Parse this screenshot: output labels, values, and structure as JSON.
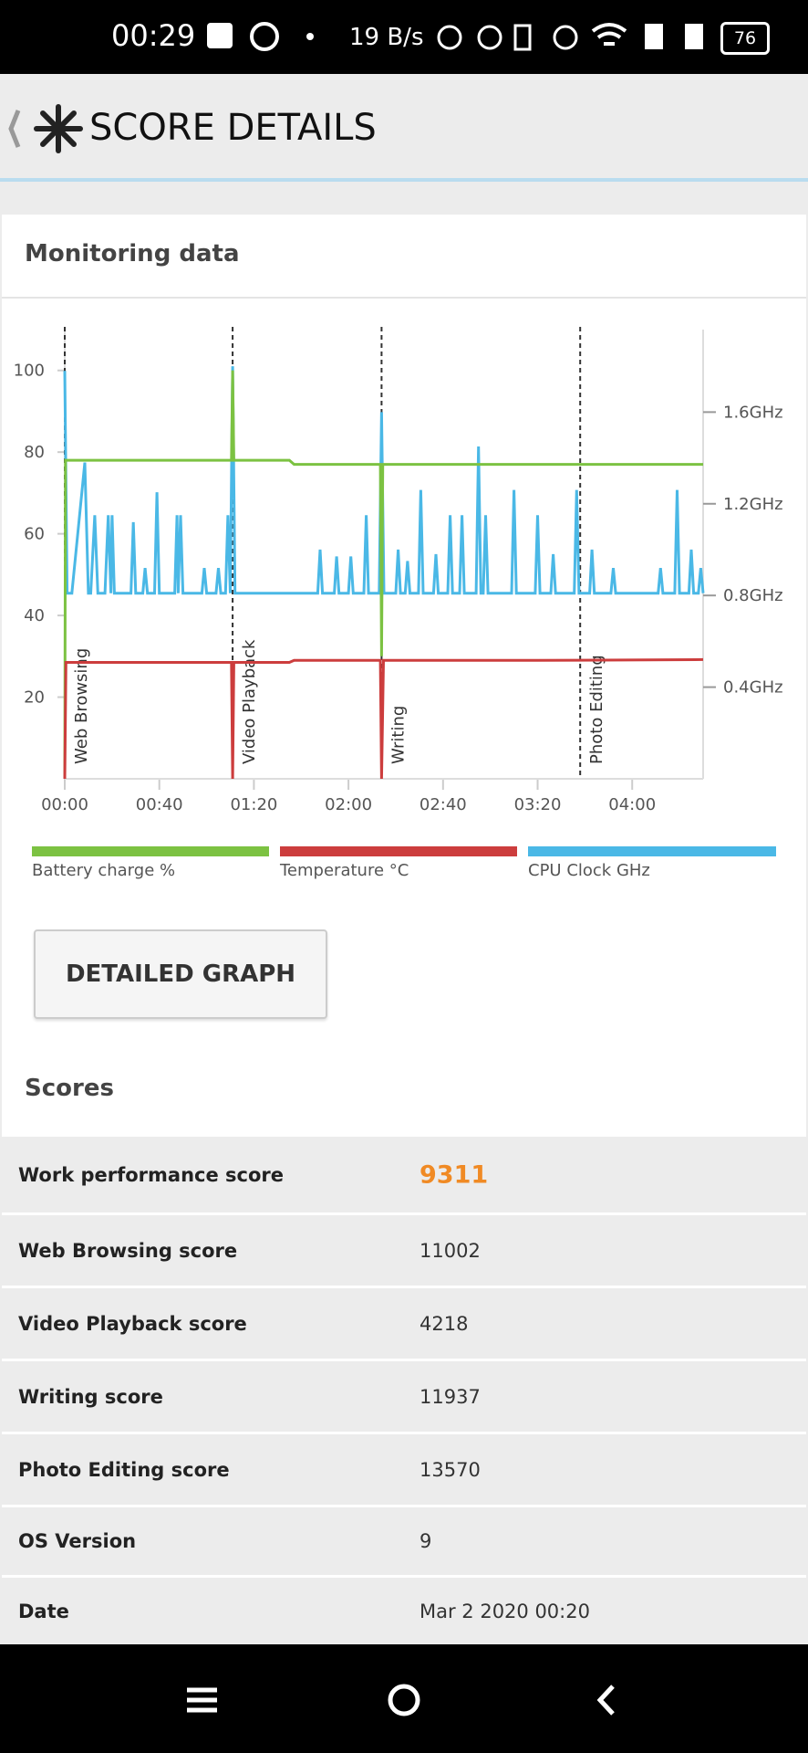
{
  "status_bar": {
    "time": "00:29",
    "net_speed": "19 B/s",
    "battery": "76"
  },
  "header": {
    "title": "SCORE DETAILS"
  },
  "monitoring": {
    "title": "Monitoring data",
    "chart_data": {
      "type": "line",
      "xlim": [
        0,
        270
      ],
      "xticks": [
        {
          "value": 0,
          "label": "00:00"
        },
        {
          "value": 40,
          "label": "00:40"
        },
        {
          "value": 80,
          "label": "01:20"
        },
        {
          "value": 120,
          "label": "02:00"
        },
        {
          "value": 160,
          "label": "02:40"
        },
        {
          "value": 200,
          "label": "03:20"
        },
        {
          "value": 240,
          "label": "04:00"
        }
      ],
      "ylim": [
        0,
        110
      ],
      "yticks": [
        20,
        40,
        60,
        80,
        100
      ],
      "y2lim": [
        0,
        1.96
      ],
      "y2ticks": [
        {
          "value": 0.4,
          "label": "0.4GHz"
        },
        {
          "value": 0.8,
          "label": "0.8GHz"
        },
        {
          "value": 1.2,
          "label": "1.2GHz"
        },
        {
          "value": 1.6,
          "label": "1.6GHz"
        }
      ],
      "events": [
        {
          "x": 0,
          "label": "Web Browsing"
        },
        {
          "x": 71,
          "label": "Video Playback"
        },
        {
          "x": 134,
          "label": "Writing"
        },
        {
          "x": 218,
          "label": "Photo Editing"
        }
      ],
      "series": [
        {
          "name": "Battery charge %",
          "color": "#7cc242",
          "axis": "y",
          "x": [
            0,
            0.3,
            70.5,
            71,
            71.5,
            95,
            97,
            133.5,
            134,
            134.5,
            270
          ],
          "values": [
            0,
            78,
            78,
            100,
            78,
            78,
            77,
            77,
            30,
            77,
            77
          ]
        },
        {
          "name": "Temperature °C",
          "color": "#cc3d3d",
          "axis": "y",
          "x": [
            0,
            0.5,
            70.5,
            71,
            71.5,
            95,
            97,
            133.5,
            134,
            134.8,
            200,
            270
          ],
          "values": [
            0,
            28.5,
            28.5,
            0,
            28.5,
            28.5,
            29,
            29,
            0,
            29,
            29,
            29.2
          ]
        },
        {
          "name": "CPU Clock GHz",
          "color": "#4ab8e6",
          "axis": "y2",
          "x": [
            0,
            1,
            3,
            8.5,
            10,
            11,
            12.7,
            14,
            17,
            18.4,
            19.5,
            20,
            21,
            28,
            29,
            30,
            33,
            34,
            35,
            38,
            39,
            40,
            46.5,
            47.5,
            48,
            49,
            50,
            58,
            59,
            60,
            64,
            65,
            66,
            68,
            69,
            70,
            71,
            72,
            107,
            108,
            109,
            114,
            115,
            116,
            120,
            121,
            122,
            126.5,
            127.5,
            128.5,
            133,
            134,
            135,
            140,
            141,
            142,
            144,
            145,
            146,
            149.6,
            150.6,
            151.6,
            156,
            157,
            158,
            162,
            163,
            164,
            167,
            168,
            169,
            174,
            175,
            176,
            177,
            178,
            179,
            189,
            190,
            191,
            199,
            200,
            201,
            205.6,
            206.6,
            207.6,
            215.5,
            216.5,
            217.5,
            222,
            223,
            224,
            231,
            232,
            233,
            251,
            252,
            253,
            258,
            259,
            260,
            264,
            265,
            266,
            268,
            269,
            270
          ],
          "values": [
            1.78,
            0.81,
            0.81,
            1.38,
            0.81,
            0.81,
            1.15,
            0.81,
            0.81,
            1.15,
            0.81,
            1.15,
            0.81,
            0.81,
            1.12,
            0.81,
            0.81,
            0.92,
            0.81,
            0.81,
            1.25,
            0.81,
            0.81,
            1.15,
            0.81,
            1.15,
            0.81,
            0.81,
            0.92,
            0.81,
            0.81,
            0.92,
            0.81,
            0.81,
            1.15,
            0.81,
            1.8,
            0.81,
            0.81,
            1.0,
            0.81,
            0.81,
            0.97,
            0.81,
            0.81,
            0.97,
            0.81,
            0.81,
            1.15,
            0.81,
            0.81,
            1.6,
            0.81,
            0.81,
            1.0,
            0.81,
            0.81,
            0.95,
            0.81,
            0.81,
            1.26,
            0.81,
            0.81,
            0.98,
            0.81,
            0.81,
            1.15,
            0.81,
            0.81,
            1.15,
            0.81,
            0.81,
            1.45,
            0.81,
            0.81,
            1.15,
            0.81,
            0.81,
            1.26,
            0.81,
            0.81,
            1.15,
            0.81,
            0.81,
            0.98,
            0.81,
            0.81,
            1.26,
            0.81,
            0.81,
            1.0,
            0.81,
            0.81,
            0.92,
            0.81,
            0.81,
            0.92,
            0.81,
            0.81,
            1.26,
            0.81,
            0.81,
            1.0,
            0.81,
            0.81,
            0.92,
            0.81
          ]
        }
      ]
    }
  },
  "button": "DETAILED GRAPH",
  "scores": {
    "title": "Scores",
    "rows": [
      [
        "Work performance score",
        "9311"
      ],
      [
        "Web Browsing score",
        "11002"
      ],
      [
        "Video Playback score",
        "4218"
      ],
      [
        "Writing score",
        "11937"
      ],
      [
        "Photo Editing score",
        "13570"
      ],
      [
        "OS Version",
        "9"
      ],
      [
        "Date",
        "Mar 2 2020 00:20"
      ]
    ]
  }
}
